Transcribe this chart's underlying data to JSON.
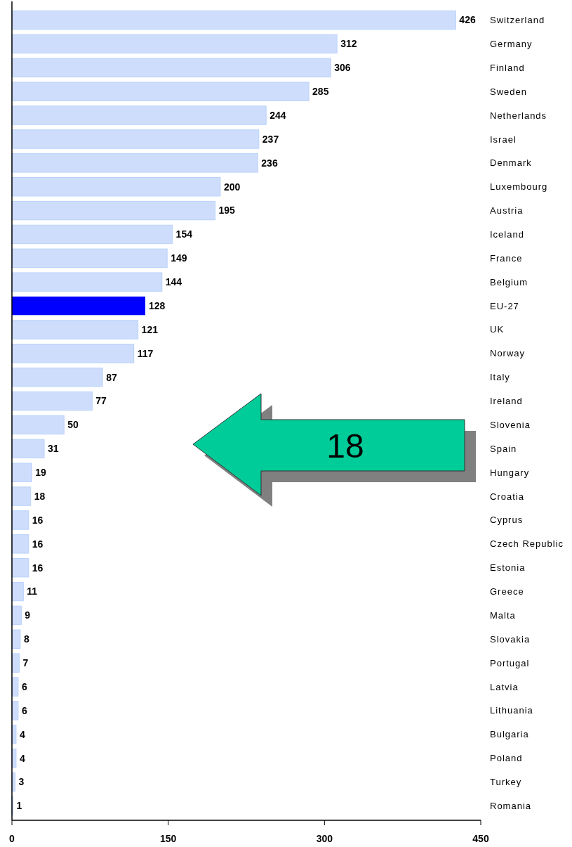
{
  "chart_data": {
    "type": "bar",
    "orientation": "horizontal",
    "categories": [
      "Switzerland",
      "Germany",
      "Finland",
      "Sweden",
      "Netherlands",
      "Israel",
      "Denmark",
      "Luxembourg",
      "Austria",
      "Iceland",
      "France",
      "Belgium",
      "EU-27",
      "UK",
      "Norway",
      "Italy",
      "Ireland",
      "Slovenia",
      "Spain",
      "Hungary",
      "Croatia",
      "Cyprus",
      "Czech Republic",
      "Estonia",
      "Greece",
      "Malta",
      "Slovakia",
      "Portugal",
      "Latvia",
      "Lithuania",
      "Bulgaria",
      "Poland",
      "Turkey",
      "Romania"
    ],
    "values": [
      426,
      312,
      306,
      285,
      244,
      237,
      236,
      200,
      195,
      154,
      149,
      144,
      128,
      121,
      117,
      87,
      77,
      50,
      31,
      19,
      18,
      16,
      16,
      16,
      11,
      9,
      8,
      7,
      6,
      6,
      4,
      4,
      3,
      1
    ],
    "colors": [
      "#cfddfc",
      "#cfddfc",
      "#cfddfc",
      "#cfddfc",
      "#cfddfc",
      "#cfddfc",
      "#cfddfc",
      "#cfddfc",
      "#cfddfc",
      "#cfddfc",
      "#cfddfc",
      "#cfddfc",
      "#0000ff",
      "#cfddfc",
      "#cfddfc",
      "#cfddfc",
      "#cfddfc",
      "#cfddfc",
      "#cfddfc",
      "#cfddfc",
      "#cfddfc",
      "#cfddfc",
      "#cfddfc",
      "#cfddfc",
      "#cfddfc",
      "#cfddfc",
      "#cfddfc",
      "#cfddfc",
      "#cfddfc",
      "#cfddfc",
      "#cfddfc",
      "#cfddfc",
      "#cfddfc",
      "#cfddfc"
    ],
    "xlim": [
      0,
      450
    ],
    "xticks": [
      0,
      150,
      300,
      450
    ],
    "data_labels": true,
    "annotations": [
      "18"
    ]
  }
}
